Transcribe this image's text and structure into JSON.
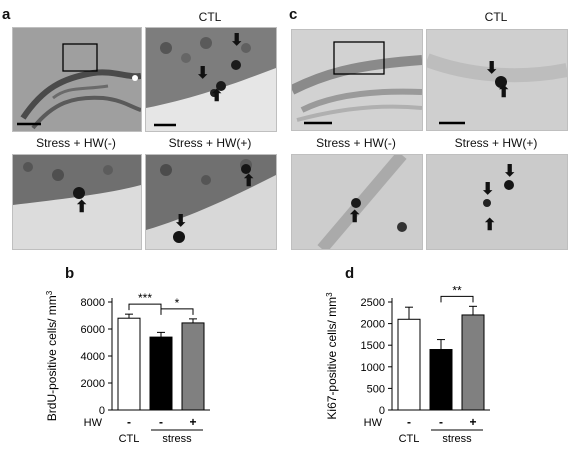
{
  "figure": {
    "panel_a": {
      "letter": "a",
      "captions": {
        "top_right": "CTL",
        "bottom_left": "Stress + HW(-)",
        "bottom_right": "Stress + HW(+)"
      }
    },
    "panel_c": {
      "letter": "c",
      "captions": {
        "top_right": "CTL",
        "bottom_left": "Stress + HW(-)",
        "bottom_right": "Stress + HW(+)"
      }
    },
    "panel_b": {
      "letter": "b"
    },
    "panel_d": {
      "letter": "d"
    }
  },
  "chart_data": [
    {
      "type": "bar",
      "categories": [
        "CTL",
        "stress HW-",
        "stress HW+"
      ],
      "values": [
        6800,
        5400,
        6450
      ],
      "errors": [
        300,
        350,
        300
      ],
      "bar_colors": [
        "#ffffff",
        "#000000",
        "#808080"
      ],
      "ylabel": "BrdU-positive cells/ mm3",
      "ylim": [
        0,
        8000
      ],
      "yticks": [
        0,
        2000,
        4000,
        6000,
        8000
      ],
      "hw_row": {
        "label": "HW",
        "marks": [
          "-",
          "-",
          "+"
        ]
      },
      "group_labels": {
        "ctl": "CTL",
        "stress": "stress"
      },
      "significance": [
        {
          "from": 0,
          "to": 1,
          "label": "***"
        },
        {
          "from": 1,
          "to": 2,
          "label": "*"
        }
      ]
    },
    {
      "type": "bar",
      "categories": [
        "CTL",
        "stress HW-",
        "stress HW+"
      ],
      "values": [
        2100,
        1400,
        2200
      ],
      "errors": [
        280,
        230,
        200
      ],
      "bar_colors": [
        "#ffffff",
        "#000000",
        "#808080"
      ],
      "ylabel": "Ki67-positive cells/ mm3",
      "ylim": [
        0,
        2500
      ],
      "yticks": [
        0,
        500,
        1000,
        1500,
        2000,
        2500
      ],
      "hw_row": {
        "label": "HW",
        "marks": [
          "-",
          "-",
          "+"
        ]
      },
      "group_labels": {
        "ctl": "CTL",
        "stress": "stress"
      },
      "significance": [
        {
          "from": 1,
          "to": 2,
          "label": "**"
        }
      ]
    }
  ]
}
